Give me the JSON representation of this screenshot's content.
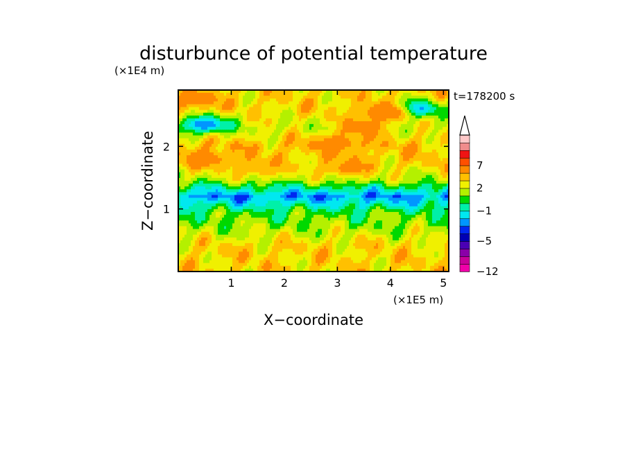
{
  "chart_data": {
    "type": "heatmap",
    "title": "disturbunce of potential temperature",
    "xlabel": "X−coordinate",
    "ylabel": "Z−coordinate",
    "x_unit": "(×1E5 m)",
    "y_unit": "(×1E4 m)",
    "time_label": "t=178200 s",
    "xlim": [
      0,
      5.1
    ],
    "ylim": [
      0,
      2.9
    ],
    "x_ticks": [
      1,
      2,
      3,
      4,
      5
    ],
    "y_ticks": [
      1,
      2
    ],
    "colorbar": {
      "levels": [
        -12,
        -10,
        -8,
        -6,
        -5,
        -4,
        -3,
        -2,
        -1,
        0,
        1,
        2,
        3,
        5,
        7,
        9,
        11
      ],
      "tick_labels": [
        "-12",
        "-5",
        "-1",
        "2",
        "7"
      ],
      "tick_values": [
        -12,
        -5,
        -1,
        2,
        7
      ],
      "colors": [
        "#f000a8",
        "#c8009a",
        "#8a00a8",
        "#4a00b4",
        "#0000b4",
        "#0028f0",
        "#0096ff",
        "#00e8f0",
        "#00f0a8",
        "#00d800",
        "#b4f000",
        "#f0f000",
        "#ffc000",
        "#ff8a00",
        "#ff5000",
        "#f01414",
        "#f08c8c",
        "#ffc8c8"
      ],
      "extend": "max"
    },
    "field_summary": {
      "z_bands_value": [
        {
          "z": 0.1,
          "value": 2
        },
        {
          "z": 0.4,
          "value": 2
        },
        {
          "z": 0.7,
          "value": 0.5
        },
        {
          "z": 0.95,
          "value": -0.5
        },
        {
          "z": 1.2,
          "value": -3.5
        },
        {
          "z": 1.45,
          "value": 0.5
        },
        {
          "z": 1.7,
          "value": 2
        },
        {
          "z": 2.0,
          "value": 2.5
        },
        {
          "z": 2.3,
          "value": 1
        },
        {
          "z": 2.6,
          "value": 2
        },
        {
          "z": 2.85,
          "value": 2
        }
      ],
      "blobs": [
        {
          "x": 0.5,
          "z": 2.35,
          "value": -4
        },
        {
          "x": 4.5,
          "z": 2.6,
          "value": -4
        },
        {
          "x": 3.5,
          "z": 2.3,
          "value": 4
        },
        {
          "x": 3.9,
          "z": 2.55,
          "value": 5
        },
        {
          "x": 0.3,
          "z": 2.75,
          "value": 4
        },
        {
          "x": 3.0,
          "z": 2.05,
          "value": 4
        },
        {
          "x": 0.5,
          "z": 1.8,
          "value": 4
        },
        {
          "x": 1.5,
          "z": 1.65,
          "value": 3
        },
        {
          "x": 3.2,
          "z": 1.65,
          "value": 3.5
        }
      ]
    }
  }
}
